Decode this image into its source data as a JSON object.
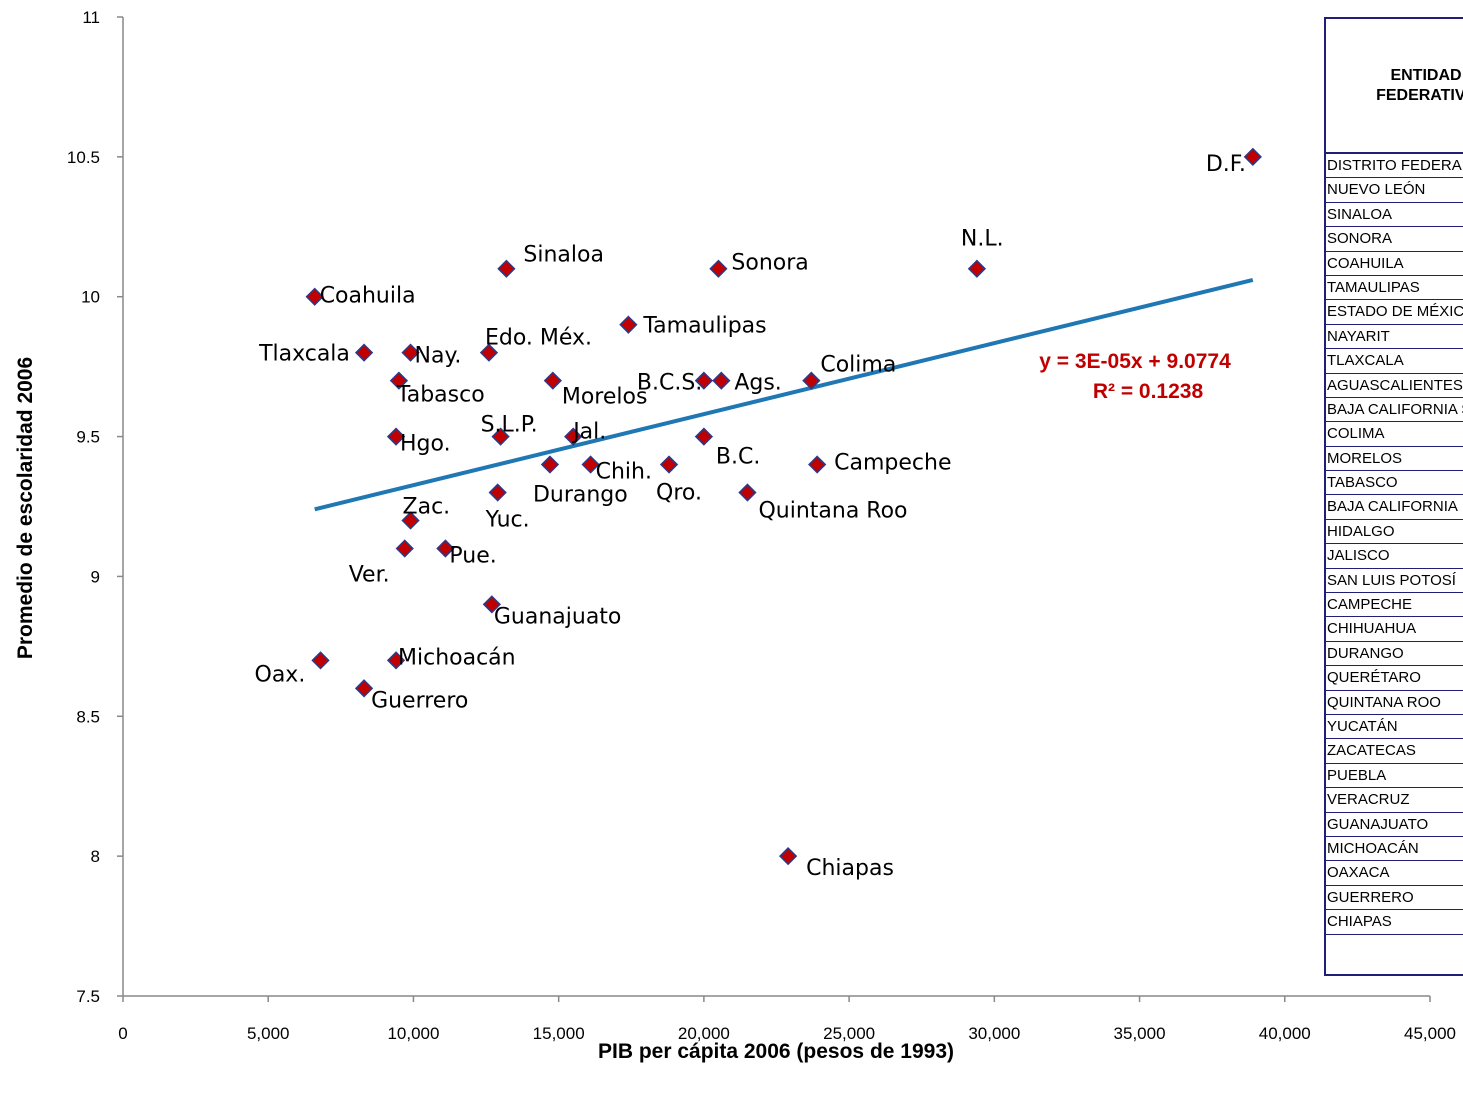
{
  "chart_data": {
    "type": "scatter",
    "xlabel": "PIB per cápita 2006 (pesos de 1993)",
    "ylabel": "Promedio de escolaridad 2006",
    "xlim": [
      0,
      45000
    ],
    "ylim": [
      7.5,
      11
    ],
    "x_ticks": [
      "0",
      "5,000",
      "10,000",
      "15,000",
      "20,000",
      "25,000",
      "30,000",
      "35,000",
      "40,000",
      "45,000"
    ],
    "y_ticks": [
      "7.5",
      "8",
      "8.5",
      "9",
      "9.5",
      "10",
      "10.5",
      "11"
    ],
    "marker_color": "#c00000",
    "marker_edge": "#2a3a8a",
    "trendline_color": "#1f77b4",
    "points": [
      {
        "label": "D.F.",
        "x": 38900,
        "y": 10.5
      },
      {
        "label": "N.L.",
        "x": 29400,
        "y": 10.1
      },
      {
        "label": "Sinaloa",
        "x": 13200,
        "y": 10.1
      },
      {
        "label": "Sonora",
        "x": 20500,
        "y": 10.1
      },
      {
        "label": "Coahuila",
        "x": 6600,
        "y": 10.0
      },
      {
        "label": "Tamaulipas",
        "x": 17400,
        "y": 9.9
      },
      {
        "label": "Edo. Méx.",
        "x": 12600,
        "y": 9.8
      },
      {
        "label": "Nay.",
        "x": 9900,
        "y": 9.8
      },
      {
        "label": "Tlaxcala",
        "x": 8300,
        "y": 9.8
      },
      {
        "label": "Ags.",
        "x": 20600,
        "y": 9.7
      },
      {
        "label": "B.C.S.",
        "x": 20000,
        "y": 9.7
      },
      {
        "label": "Colima",
        "x": 23700,
        "y": 9.7
      },
      {
        "label": "Morelos",
        "x": 14800,
        "y": 9.7
      },
      {
        "label": "Tabasco",
        "x": 9500,
        "y": 9.7
      },
      {
        "label": "B.C.",
        "x": 20000,
        "y": 9.5
      },
      {
        "label": "Hgo.",
        "x": 9400,
        "y": 9.5
      },
      {
        "label": "Jal.",
        "x": 15500,
        "y": 9.5
      },
      {
        "label": "S.L.P.",
        "x": 13000,
        "y": 9.5
      },
      {
        "label": "Campeche",
        "x": 23900,
        "y": 9.4
      },
      {
        "label": "Chih.",
        "x": 16100,
        "y": 9.4
      },
      {
        "label": "Durango",
        "x": 14700,
        "y": 9.4
      },
      {
        "label": "Qro.",
        "x": 18800,
        "y": 9.4
      },
      {
        "label": "Quintana Roo",
        "x": 21500,
        "y": 9.3
      },
      {
        "label": "Yuc.",
        "x": 12900,
        "y": 9.3
      },
      {
        "label": "Zac.",
        "x": 9900,
        "y": 9.2
      },
      {
        "label": "Pue.",
        "x": 11100,
        "y": 9.1
      },
      {
        "label": "Ver.",
        "x": 9700,
        "y": 9.1
      },
      {
        "label": "Guanajuato",
        "x": 12700,
        "y": 8.9
      },
      {
        "label": "Michoacán",
        "x": 9400,
        "y": 8.7
      },
      {
        "label": "Oax.",
        "x": 6800,
        "y": 8.7
      },
      {
        "label": "Guerrero",
        "x": 8300,
        "y": 8.6
      },
      {
        "label": "Chiapas",
        "x": 22900,
        "y": 8.0
      }
    ],
    "trendline": {
      "x": [
        6600,
        38900
      ],
      "y": [
        9.24,
        10.06
      ],
      "equation": "y = 3E-05x + 9.0774",
      "r2": "R² = 0.1238"
    }
  },
  "table": {
    "header_line1": "ENTIDAD",
    "header_line2": "FEDERATIVA",
    "rows": [
      "DISTRITO FEDERAL",
      "NUEVO LEÓN",
      "SINALOA",
      "SONORA",
      "COAHUILA",
      "TAMAULIPAS",
      "ESTADO DE MÉXICO",
      "NAYARIT",
      "TLAXCALA",
      "AGUASCALIENTES",
      "BAJA CALIFORNIA SUR",
      "COLIMA",
      "MORELOS",
      "TABASCO",
      "BAJA CALIFORNIA",
      "HIDALGO",
      "JALISCO",
      "SAN LUIS POTOSÍ",
      "CAMPECHE",
      "CHIHUAHUA",
      "DURANGO",
      "QUERÉTARO",
      "QUINTANA ROO",
      "YUCATÁN",
      "ZACATECAS",
      "PUEBLA",
      "VERACRUZ",
      "GUANAJUATO",
      "MICHOACÁN",
      "OAXACA",
      "GUERRERO",
      "CHIAPAS"
    ]
  }
}
